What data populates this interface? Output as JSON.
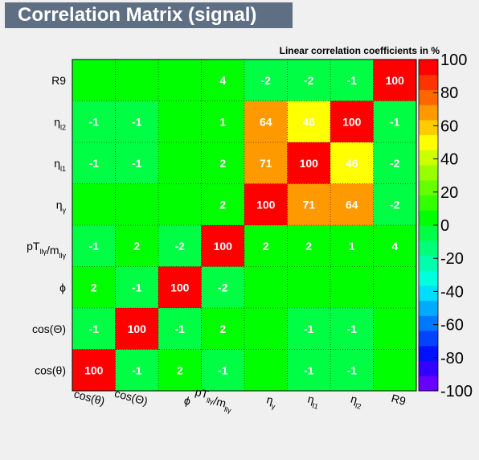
{
  "title": "Correlation Matrix (signal)",
  "chart_data": {
    "type": "heatmap",
    "subtitle": "Linear correlation coefficients in %",
    "x_labels": [
      "cos(θ)",
      "cos(Θ)",
      "ϕ",
      "pT_{llγ}/m_{llγ}",
      "η_{γ}",
      "η_{l1}",
      "η_{l2}",
      "R9"
    ],
    "y_labels_bottom_to_top": [
      "cos(θ)",
      "cos(Θ)",
      "ϕ",
      "pT_{llγ}/m_{llγ}",
      "η_{γ}",
      "η_{l1}",
      "η_{l2}",
      "R9"
    ],
    "matrix_rows_bottom_to_top": [
      [
        100,
        -1,
        2,
        -1,
        0,
        -1,
        -1,
        0
      ],
      [
        -1,
        100,
        -1,
        2,
        0,
        -1,
        -1,
        0
      ],
      [
        2,
        -1,
        100,
        -2,
        0,
        0,
        0,
        0
      ],
      [
        -1,
        2,
        -2,
        100,
        2,
        2,
        1,
        4
      ],
      [
        0,
        0,
        0,
        2,
        100,
        71,
        64,
        -2
      ],
      [
        -1,
        -1,
        0,
        2,
        71,
        100,
        46,
        -2
      ],
      [
        -1,
        -1,
        0,
        1,
        64,
        46,
        100,
        -1
      ],
      [
        0,
        0,
        0,
        4,
        -2,
        -2,
        -1,
        100
      ]
    ],
    "zlim": [
      -100,
      100
    ],
    "z_ticks": [
      "100",
      "80",
      "60",
      "40",
      "20",
      "0",
      "-20",
      "-40",
      "-60",
      "-80",
      "-100"
    ],
    "colorbar_colors": [
      "#6600ff",
      "#3300ff",
      "#0011ff",
      "#0044ff",
      "#0077ff",
      "#00aaff",
      "#00ddff",
      "#00ffdd",
      "#00ffaa",
      "#00ff77",
      "#00ff44",
      "#00ff00",
      "#33ff00",
      "#66ff00",
      "#99ff00",
      "#ccff00",
      "#ffff00",
      "#ffcc00",
      "#ff9900",
      "#ff6600",
      "#ff3300",
      "#ff0000"
    ]
  }
}
